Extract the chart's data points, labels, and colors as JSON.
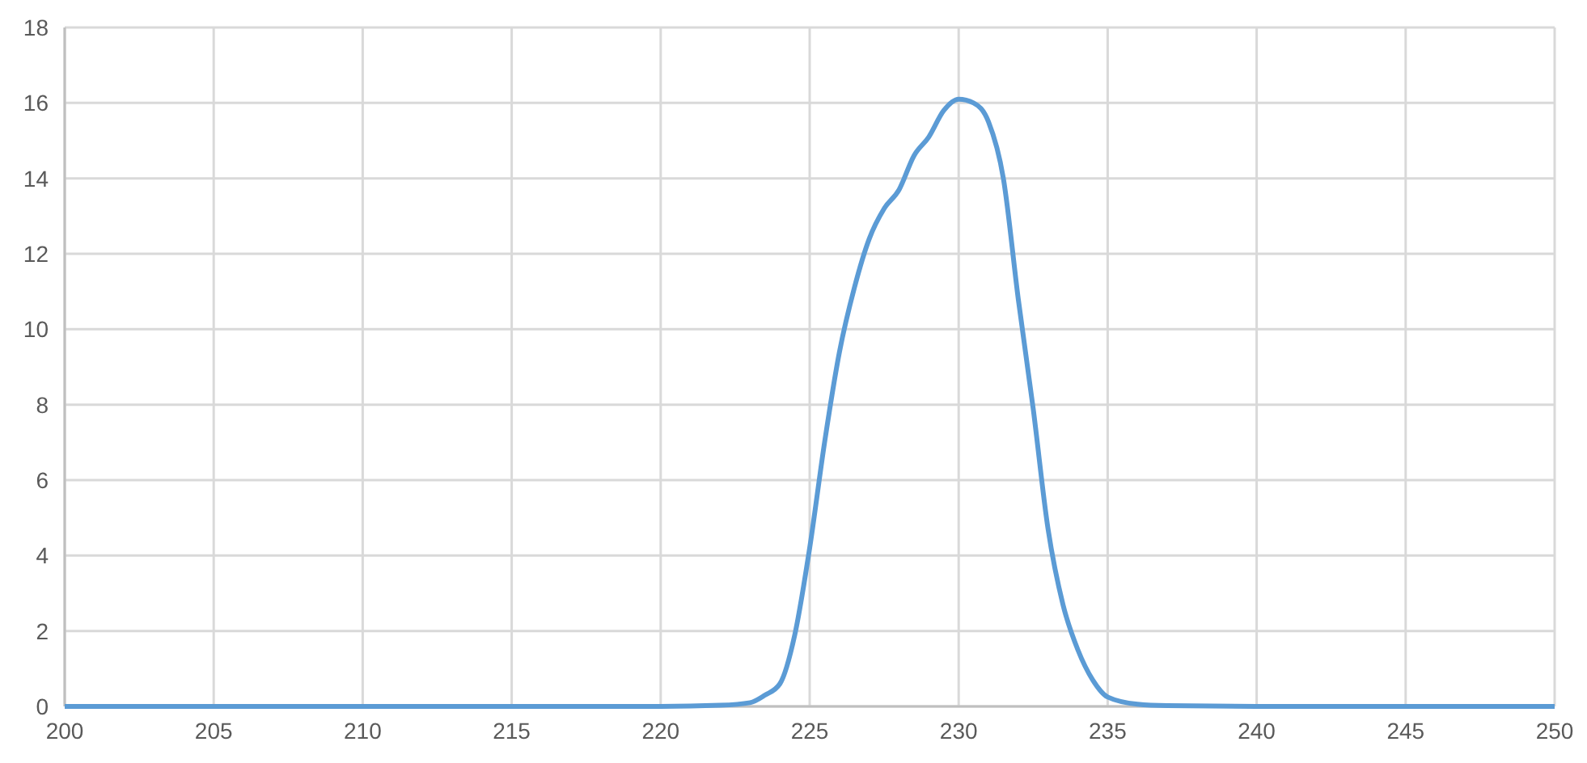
{
  "chart_data": {
    "type": "line",
    "xlim": [
      200,
      250
    ],
    "xticks": [
      200,
      205,
      210,
      215,
      220,
      225,
      230,
      235,
      240,
      245,
      250
    ],
    "ylim": [
      0,
      18
    ],
    "yticks": [
      0,
      2,
      4,
      6,
      8,
      10,
      12,
      14,
      16,
      18
    ],
    "grid": true,
    "marker": "none",
    "series": [
      {
        "color": "#5b9bd5",
        "x": [
          200,
          210,
          220,
          222,
          223,
          223.5,
          224,
          224.5,
          225,
          225.5,
          226,
          226.5,
          227,
          227.5,
          228,
          228.5,
          229,
          229.5,
          230,
          230.5,
          231,
          231.5,
          232,
          232.5,
          233,
          233.5,
          234,
          234.5,
          235,
          236,
          237,
          240,
          250
        ],
        "values": [
          0,
          0,
          0,
          0.03,
          0.1,
          0.3,
          0.6,
          1.9,
          4.2,
          7,
          9.4,
          11.1,
          12.4,
          13.2,
          13.7,
          14.6,
          15.1,
          15.8,
          16.1,
          16,
          15.5,
          14,
          10.8,
          7.9,
          4.7,
          2.7,
          1.5,
          0.7,
          0.25,
          0.06,
          0.02,
          0,
          0
        ]
      }
    ]
  }
}
